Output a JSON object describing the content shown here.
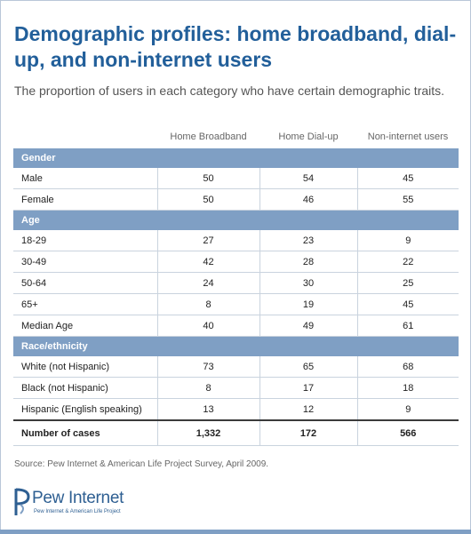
{
  "title": "Demographic profiles: home broadband, dial-up, and non-internet users",
  "subtitle": "The proportion of users in each category who have certain demographic traits.",
  "source": "Source: Pew Internet & American Life Project Survey, April 2009.",
  "logo": {
    "name": "Pew Internet",
    "tagline": "Pew Internet & American Life Project"
  },
  "colors": {
    "title": "#225f9a",
    "section_band": "#7f9fc4",
    "gridline": "#c9d3de"
  },
  "chart_data": {
    "type": "table",
    "columns": [
      "Home Broadband",
      "Home Dial-up",
      "Non-internet users"
    ],
    "sections": [
      {
        "name": "Gender",
        "rows": [
          {
            "label": "Male",
            "values": [
              "50",
              "54",
              "45"
            ]
          },
          {
            "label": "Female",
            "values": [
              "50",
              "46",
              "55"
            ]
          }
        ]
      },
      {
        "name": "Age",
        "rows": [
          {
            "label": "18-29",
            "values": [
              "27",
              "23",
              "9"
            ]
          },
          {
            "label": "30-49",
            "values": [
              "42",
              "28",
              "22"
            ]
          },
          {
            "label": "50-64",
            "values": [
              "24",
              "30",
              "25"
            ]
          },
          {
            "label": "65+",
            "values": [
              "8",
              "19",
              "45"
            ]
          },
          {
            "label": "Median Age",
            "values": [
              "40",
              "49",
              "61"
            ]
          }
        ]
      },
      {
        "name": "Race/ethnicity",
        "rows": [
          {
            "label": "White (not Hispanic)",
            "values": [
              "73",
              "65",
              "68"
            ]
          },
          {
            "label": "Black (not Hispanic)",
            "values": [
              "8",
              "17",
              "18"
            ]
          },
          {
            "label": "Hispanic (English speaking)",
            "values": [
              "13",
              "12",
              "9"
            ]
          }
        ]
      }
    ],
    "total": {
      "label": "Number of cases",
      "values": [
        "1,332",
        "172",
        "566"
      ]
    }
  }
}
